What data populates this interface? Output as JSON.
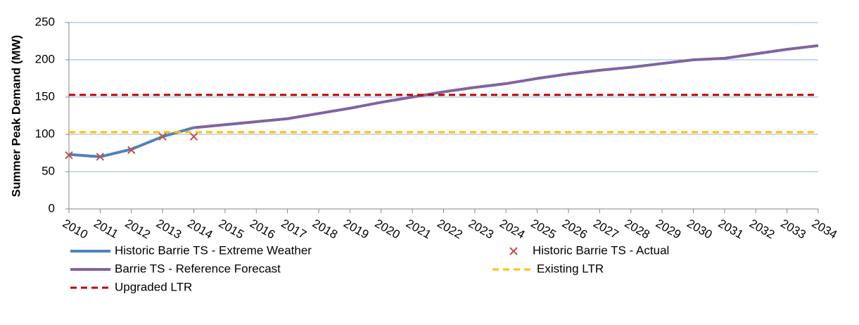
{
  "chart_data": {
    "type": "line",
    "y_label": "Summer Peak Demand (MW)",
    "x": [
      2010,
      2011,
      2012,
      2013,
      2014,
      2015,
      2016,
      2017,
      2018,
      2019,
      2020,
      2021,
      2022,
      2023,
      2024,
      2025,
      2026,
      2027,
      2028,
      2029,
      2030,
      2031,
      2032,
      2033,
      2034
    ],
    "xlim": [
      2010,
      2034
    ],
    "xticks": [
      2010,
      2011,
      2012,
      2013,
      2014,
      2015,
      2016,
      2017,
      2018,
      2019,
      2020,
      2021,
      2022,
      2023,
      2024,
      2025,
      2026,
      2027,
      2028,
      2029,
      2030,
      2031,
      2032,
      2033,
      2034
    ],
    "ylim": [
      0,
      250
    ],
    "yticks": [
      0,
      50,
      100,
      150,
      200,
      250
    ],
    "grid": true,
    "series": [
      {
        "name": "Historic Barrie TS - Extreme Weather",
        "color": "#4f81bd",
        "style": "line",
        "values": [
          73,
          70,
          80,
          97,
          109,
          null,
          null,
          null,
          null,
          null,
          null,
          null,
          null,
          null,
          null,
          null,
          null,
          null,
          null,
          null,
          null,
          null,
          null,
          null,
          null
        ]
      },
      {
        "name": "Historic Barrie TS - Actual",
        "color": "#c0504d",
        "style": "marker",
        "values": [
          72,
          70,
          79,
          97,
          97,
          null,
          null,
          null,
          null,
          null,
          null,
          null,
          null,
          null,
          null,
          null,
          null,
          null,
          null,
          null,
          null,
          null,
          null,
          null,
          null
        ]
      },
      {
        "name": "Barrie TS - Reference Forecast",
        "color": "#8064a2",
        "style": "line",
        "values": [
          null,
          null,
          null,
          null,
          109,
          113,
          117,
          121,
          128,
          135,
          143,
          150,
          157,
          163,
          168,
          175,
          181,
          186,
          190,
          195,
          200,
          202,
          208,
          214,
          219
        ]
      },
      {
        "name": "Existing LTR",
        "color": "#ffc000",
        "style": "hline",
        "value": 103
      },
      {
        "name": "Upgraded LTR",
        "color": "#c00000",
        "style": "hline",
        "value": 153
      }
    ]
  }
}
